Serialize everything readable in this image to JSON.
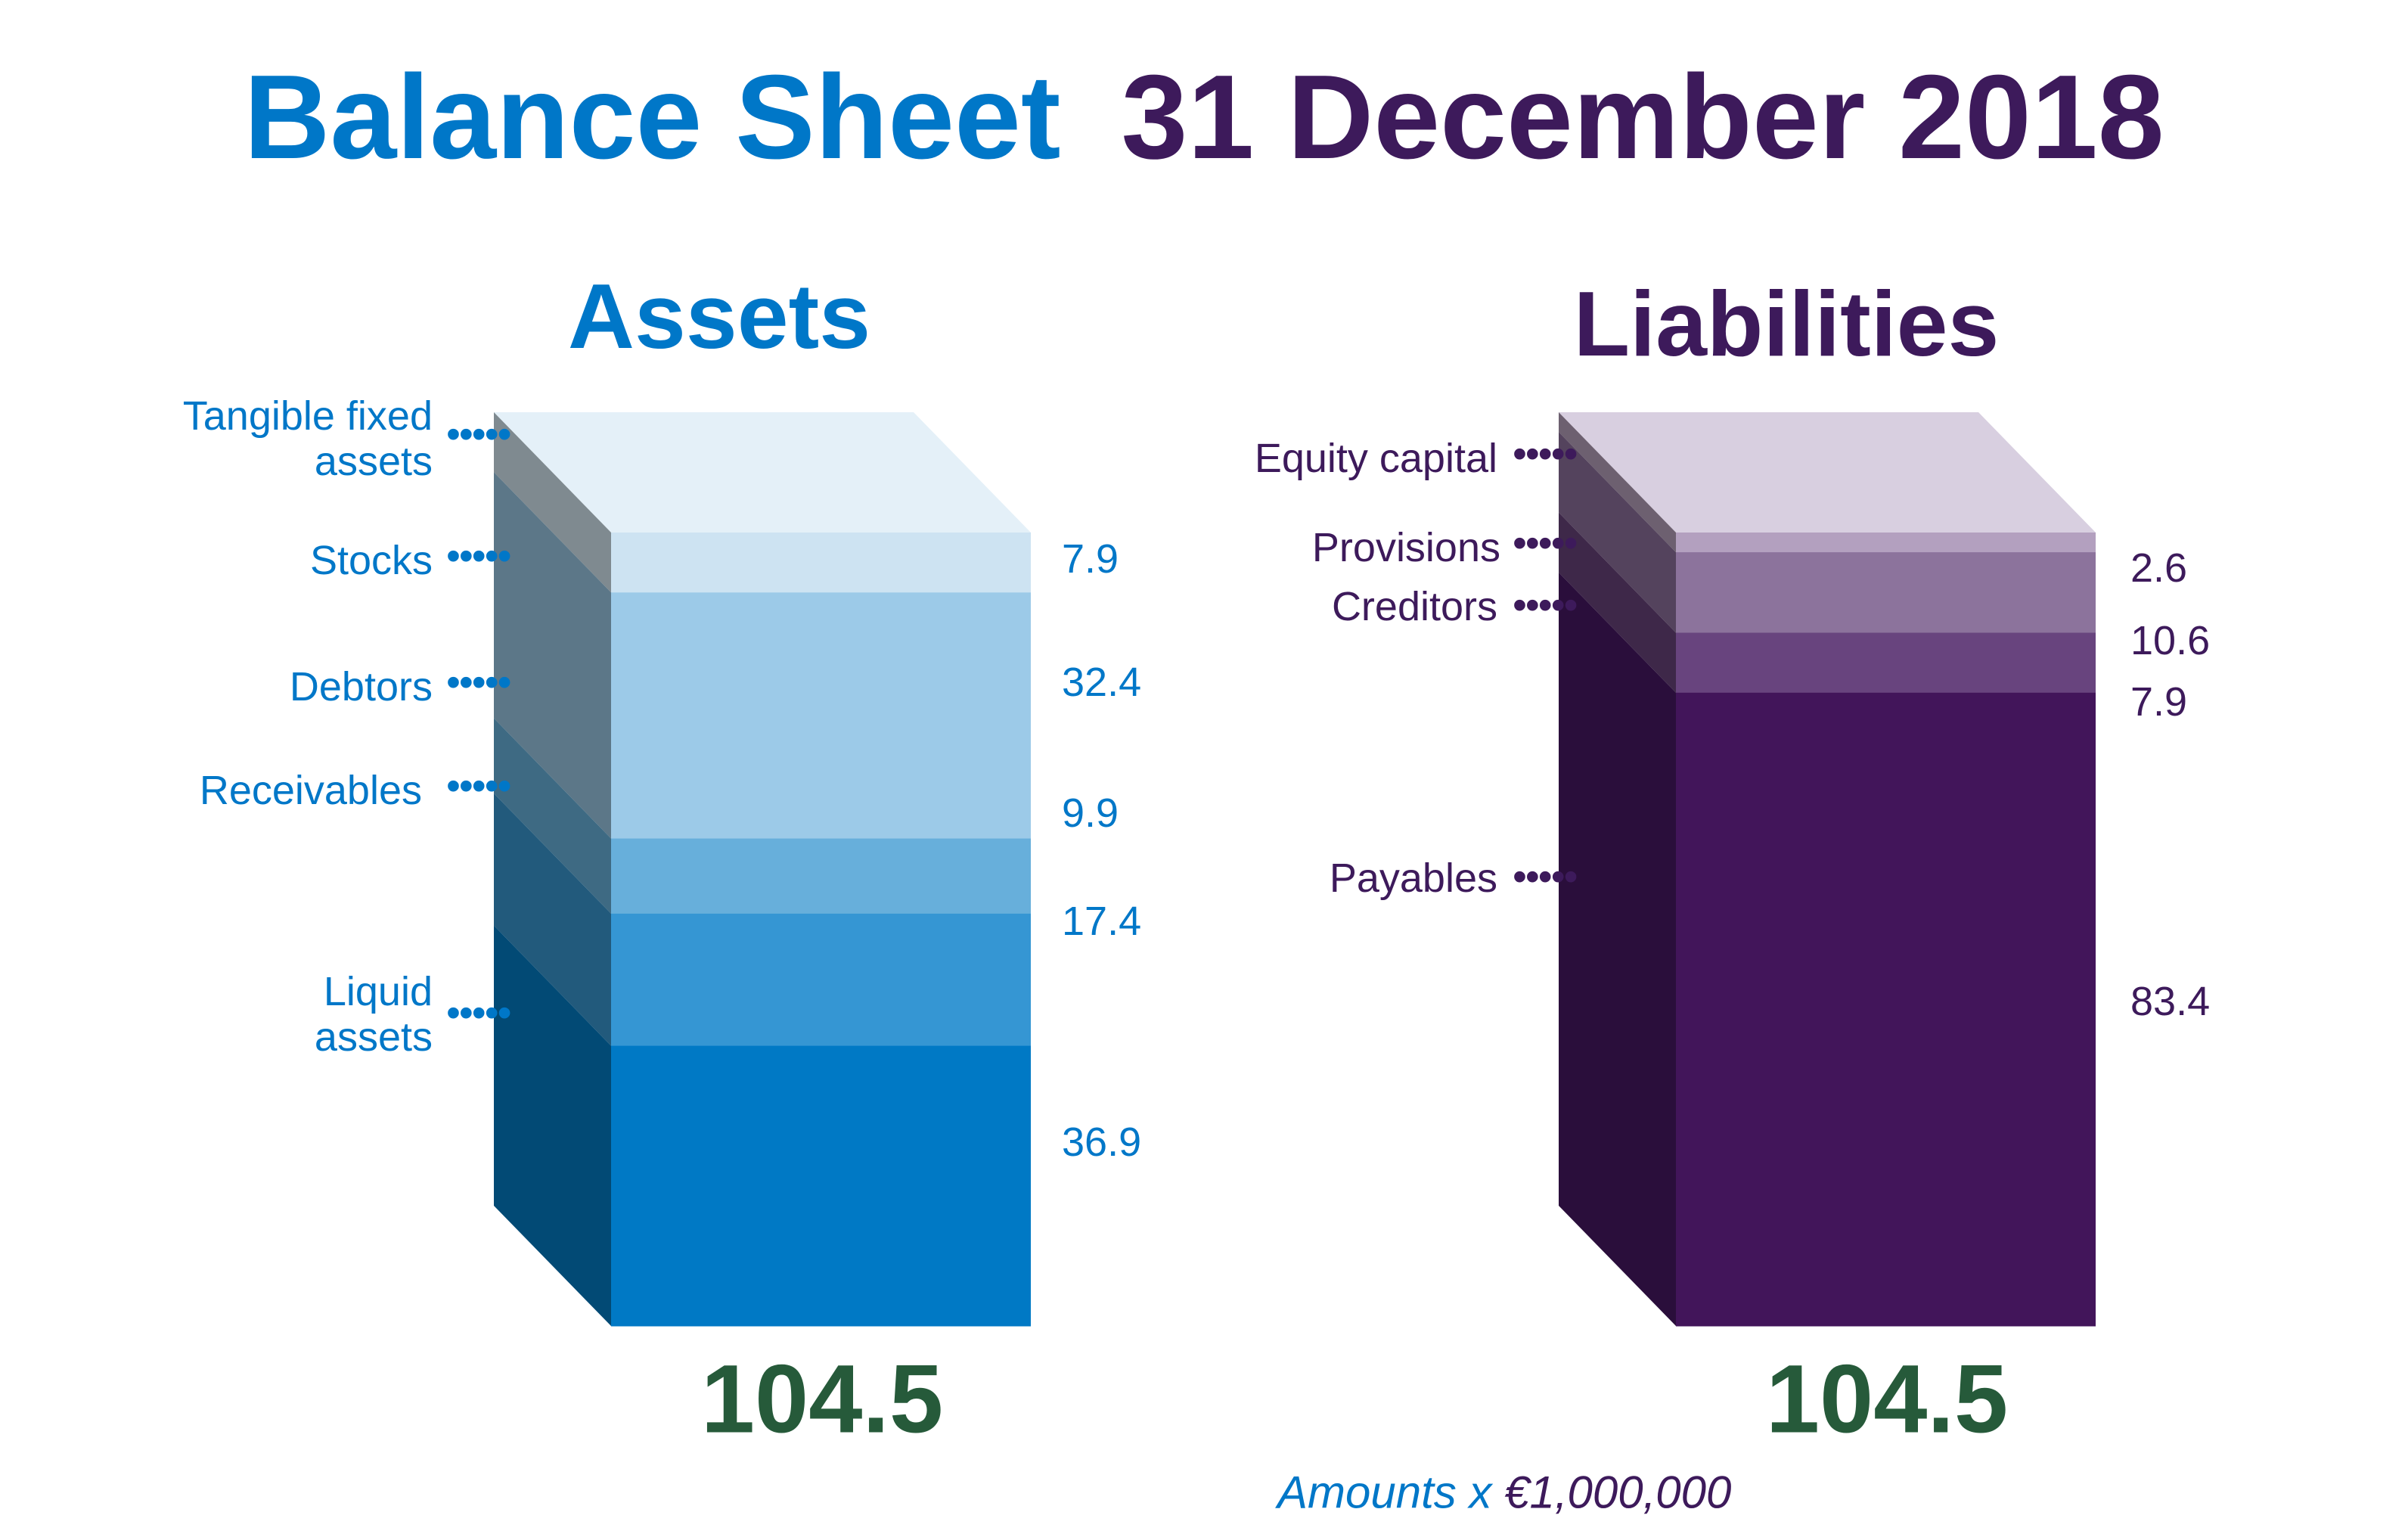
{
  "title": {
    "part1": "Balance Sheet",
    "part2": "31 December 2018"
  },
  "colors": {
    "blue": "#0077c8",
    "purple": "#3d1a5b",
    "green": "#265a3a"
  },
  "chart_data": [
    {
      "type": "bar",
      "title": "Assets",
      "stacked": true,
      "total": "104.5",
      "categories": [
        "Tangible fixed assets",
        "Stocks",
        "Debtors",
        "Receivables",
        "Liquid assets"
      ],
      "values": [
        7.9,
        32.4,
        9.9,
        17.4,
        36.9
      ],
      "value_labels": [
        "7.9",
        "32.4",
        "9.9",
        "17.4",
        "36.9"
      ],
      "top_color": "#e4f0f8",
      "front_colors": [
        "#cde3f2",
        "#9ccae8",
        "#67afdb",
        "#3596d3",
        "#0079c5"
      ],
      "side_colors": [
        "#7f8a90",
        "#5c7788",
        "#3e6a83",
        "#225a7c",
        "#024a75"
      ]
    },
    {
      "type": "bar",
      "title": "Liabilities",
      "stacked": true,
      "total": "104.5",
      "categories": [
        "Equity capital",
        "Provisions",
        "Creditors",
        "Payables"
      ],
      "values": [
        2.6,
        10.6,
        7.9,
        83.4
      ],
      "value_labels": [
        "2.6",
        "10.6",
        "7.9",
        "83.4"
      ],
      "top_color": "#d8cfe0",
      "front_colors": [
        "#b3a0bf",
        "#8c739c",
        "#68447e",
        "#42155a"
      ],
      "side_colors": [
        "#6d6070",
        "#54435d",
        "#3e2849",
        "#2a0e3b"
      ]
    }
  ],
  "footnote": {
    "part1": "Amounts x",
    "part2": "€1,000,000"
  },
  "leader": "•••••"
}
